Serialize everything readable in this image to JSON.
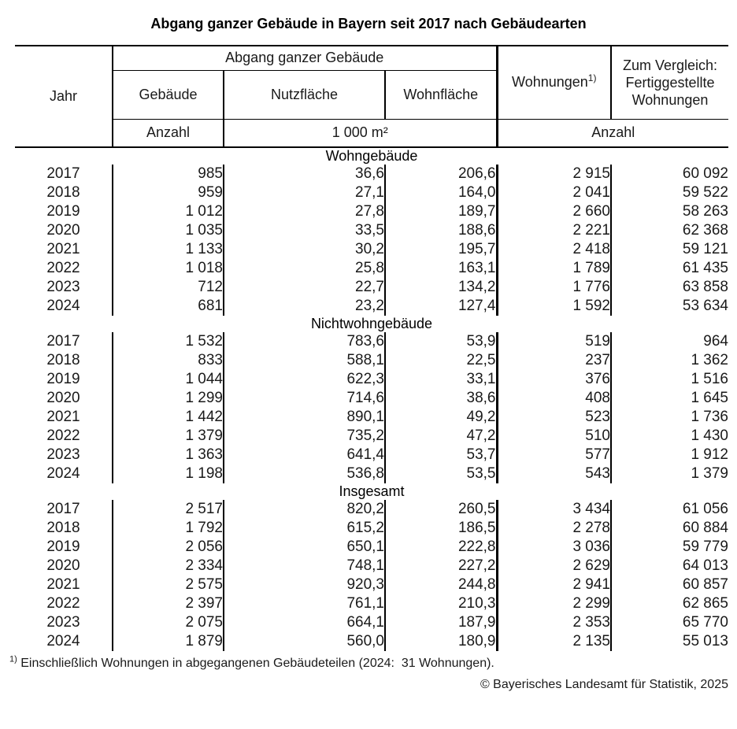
{
  "title": "Abgang ganzer Gebäude in Bayern seit 2017 nach Gebäudearten",
  "table": {
    "group_header": "Abgang ganzer Gebäude",
    "columns": {
      "jahr": "Jahr",
      "gebaeude": "Gebäude",
      "nutzflaeche": "Nutzfläche",
      "wohnflaeche": "Wohnfläche",
      "wohnungen": "Wohnungen",
      "wohnungen_footnote": "1)",
      "vergleich": "Zum Vergleich:\nFertiggestellte\nWohnungen"
    },
    "units": {
      "gebaeude": "Anzahl",
      "flaeche": "1 000 m²",
      "wohnungen": "Anzahl"
    },
    "sections": [
      {
        "label": "Wohngebäude",
        "rows": [
          [
            "2017",
            "985",
            "36,6",
            "206,6",
            "2 915",
            "60 092"
          ],
          [
            "2018",
            "959",
            "27,1",
            "164,0",
            "2 041",
            "59 522"
          ],
          [
            "2019",
            "1 012",
            "27,8",
            "189,7",
            "2 660",
            "58 263"
          ],
          [
            "2020",
            "1 035",
            "33,5",
            "188,6",
            "2 221",
            "62 368"
          ],
          [
            "2021",
            "1 133",
            "30,2",
            "195,7",
            "2 418",
            "59 121"
          ],
          [
            "2022",
            "1 018",
            "25,8",
            "163,1",
            "1 789",
            "61 435"
          ],
          [
            "2023",
            "712",
            "22,7",
            "134,2",
            "1 776",
            "63 858"
          ],
          [
            "2024",
            "681",
            "23,2",
            "127,4",
            "1 592",
            "53 634"
          ]
        ]
      },
      {
        "label": "Nichtwohngebäude",
        "rows": [
          [
            "2017",
            "1 532",
            "783,6",
            "53,9",
            "519",
            "964"
          ],
          [
            "2018",
            "833",
            "588,1",
            "22,5",
            "237",
            "1 362"
          ],
          [
            "2019",
            "1 044",
            "622,3",
            "33,1",
            "376",
            "1 516"
          ],
          [
            "2020",
            "1 299",
            "714,6",
            "38,6",
            "408",
            "1 645"
          ],
          [
            "2021",
            "1 442",
            "890,1",
            "49,2",
            "523",
            "1 736"
          ],
          [
            "2022",
            "1 379",
            "735,2",
            "47,2",
            "510",
            "1 430"
          ],
          [
            "2023",
            "1 363",
            "641,4",
            "53,7",
            "577",
            "1 912"
          ],
          [
            "2024",
            "1 198",
            "536,8",
            "53,5",
            "543",
            "1 379"
          ]
        ]
      },
      {
        "label": "Insgesamt",
        "rows": [
          [
            "2017",
            "2 517",
            "820,2",
            "260,5",
            "3 434",
            "61 056"
          ],
          [
            "2018",
            "1 792",
            "615,2",
            "186,5",
            "2 278",
            "60 884"
          ],
          [
            "2019",
            "2 056",
            "650,1",
            "222,8",
            "3 036",
            "59 779"
          ],
          [
            "2020",
            "2 334",
            "748,1",
            "227,2",
            "2 629",
            "64 013"
          ],
          [
            "2021",
            "2 575",
            "920,3",
            "244,8",
            "2 941",
            "60 857"
          ],
          [
            "2022",
            "2 397",
            "761,1",
            "210,3",
            "2 299",
            "62 865"
          ],
          [
            "2023",
            "2 075",
            "664,1",
            "187,9",
            "2 353",
            "65 770"
          ],
          [
            "2024",
            "1 879",
            "560,0",
            "180,9",
            "2 135",
            "55 013"
          ]
        ]
      }
    ]
  },
  "footnote": {
    "marker": "1)",
    "text": " Einschließlich Wohnungen in abgegangenen Gebäudeteilen (2024:  31 Wohnungen)."
  },
  "copyright": "© Bayerisches Landesamt für Statistik, 2025"
}
